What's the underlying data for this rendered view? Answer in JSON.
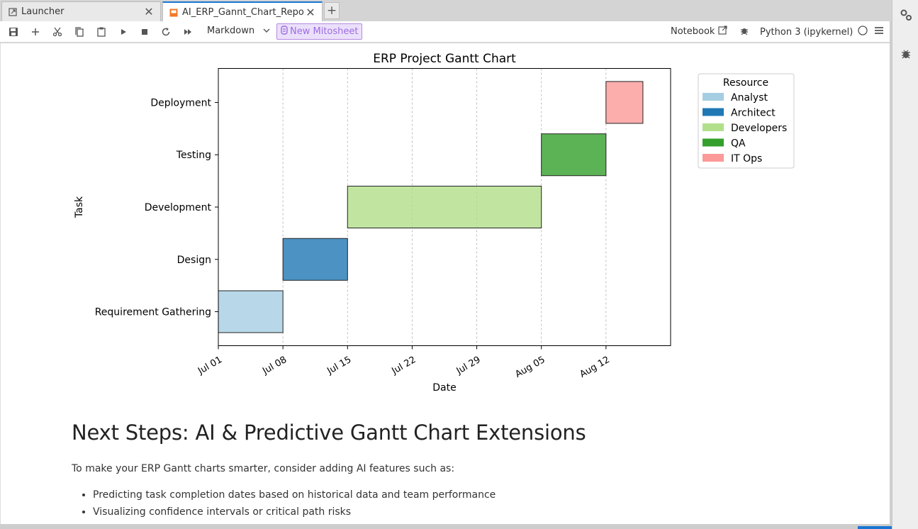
{
  "tabs": [
    {
      "label": "Launcher",
      "icon": "launcher-icon",
      "active": false
    },
    {
      "label": "AI_ERP_Gannt_Chart_Repor",
      "icon": "notebook-icon",
      "active": true
    }
  ],
  "toolbar": {
    "cell_type": "Markdown",
    "mitosheet": "New Mitosheet",
    "notebook_label": "Notebook",
    "kernel": "Python 3 (ipykernel)"
  },
  "chart_data": {
    "type": "gantt",
    "title": "ERP Project Gantt Chart",
    "xlabel": "Date",
    "ylabel": "Task",
    "x_ticks": [
      "Jul 01",
      "Jul 08",
      "Jul 15",
      "Jul 22",
      "Jul 29",
      "Aug 05",
      "Aug 12"
    ],
    "x_tick_dates": [
      "2024-07-01",
      "2024-07-08",
      "2024-07-15",
      "2024-07-22",
      "2024-07-29",
      "2024-08-05",
      "2024-08-12"
    ],
    "xlim": [
      "2024-07-01",
      "2024-08-19"
    ],
    "grid": "vertical-dashed",
    "tasks": [
      {
        "name": "Requirement Gathering",
        "start": "2024-07-01",
        "end": "2024-07-08",
        "resource": "Analyst"
      },
      {
        "name": "Design",
        "start": "2024-07-08",
        "end": "2024-07-15",
        "resource": "Architect"
      },
      {
        "name": "Development",
        "start": "2024-07-15",
        "end": "2024-08-05",
        "resource": "Developers"
      },
      {
        "name": "Testing",
        "start": "2024-08-05",
        "end": "2024-08-12",
        "resource": "QA"
      },
      {
        "name": "Deployment",
        "start": "2024-08-12",
        "end": "2024-08-16",
        "resource": "IT Ops"
      }
    ],
    "legend": {
      "title": "Resource",
      "placement": "outside-top-right",
      "entries": [
        {
          "name": "Analyst",
          "color": "#a6cee3"
        },
        {
          "name": "Architect",
          "color": "#1f78b4"
        },
        {
          "name": "Developers",
          "color": "#b2df8a"
        },
        {
          "name": "QA",
          "color": "#33a02c"
        },
        {
          "name": "IT Ops",
          "color": "#fb9a99"
        }
      ]
    }
  },
  "markdown": {
    "heading": "Next Steps: AI & Predictive Gantt Chart Extensions",
    "intro": "To make your ERP Gantt charts smarter, consider adding AI features such as:",
    "bullets": [
      "Predicting task completion dates based on historical data and team performance",
      "Visualizing confidence intervals or critical path risks"
    ]
  }
}
